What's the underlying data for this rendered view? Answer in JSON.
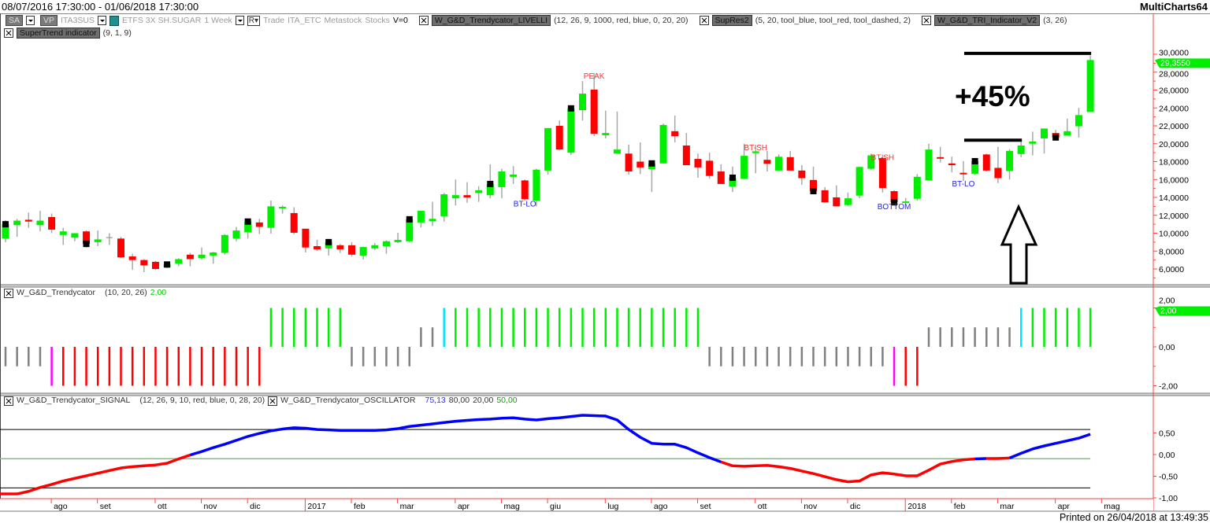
{
  "window": {
    "title": "08/07/2016 17:30:00 - 01/06/2018 17:30:00",
    "app_name": "MultiCharts64"
  },
  "legend": {
    "sa_label": "SA",
    "vp_label": "VP",
    "symbol": "ITA3SUS",
    "instrument": "ETFS 3X SH.SUGAR",
    "resolution": "1 Week",
    "r_button": "R",
    "trade": "Trade",
    "exchange": "ITA_ETC",
    "source": "Metastock",
    "category": "Stocks",
    "volume": "V=0",
    "studies": [
      {
        "name": "W_G&D_Trendycator_LIVELLI",
        "params": "(12, 26, 9, 1000, red, blue, 0, 20, 20)"
      },
      {
        "name": "SupRes2",
        "params": "(5, 20, tool_blue, tool_red, tool_dashed, 2)"
      },
      {
        "name": "W_G&D_TRI_Indicator_V2",
        "params": "(3, 26)"
      },
      {
        "name": "SuperTrend indicator",
        "params": "(9, 1, 9)"
      }
    ]
  },
  "colors": {
    "up": "#00ee00",
    "down": "#ff0000",
    "wick": "#a8a8a8",
    "axis": "#ff4040",
    "marker": "#000000",
    "neutral": "#808080",
    "cyan": "#00e5ff",
    "magenta": "#ff00ff",
    "osc_up": "#0000ff",
    "osc_down": "#ff0000",
    "level_mid": "#7fbf7f"
  },
  "annotations": {
    "gain_text": "+45%",
    "arrow": "up-arrow-outline"
  },
  "time_axis": {
    "ticks": [
      {
        "label": "ago",
        "bar": 4
      },
      {
        "label": "set",
        "bar": 8
      },
      {
        "label": "ott",
        "bar": 13
      },
      {
        "label": "nov",
        "bar": 17
      },
      {
        "label": "dic",
        "bar": 21
      },
      {
        "label": "2017",
        "bar": 26,
        "year": true
      },
      {
        "label": "feb",
        "bar": 30
      },
      {
        "label": "mar",
        "bar": 34
      },
      {
        "label": "apr",
        "bar": 39
      },
      {
        "label": "mag",
        "bar": 43
      },
      {
        "label": "giu",
        "bar": 47
      },
      {
        "label": "lug",
        "bar": 52
      },
      {
        "label": "ago",
        "bar": 56
      },
      {
        "label": "set",
        "bar": 60
      },
      {
        "label": "ott",
        "bar": 65
      },
      {
        "label": "nov",
        "bar": 69
      },
      {
        "label": "dic",
        "bar": 73
      },
      {
        "label": "2018",
        "bar": 78,
        "year": true
      },
      {
        "label": "feb",
        "bar": 82
      },
      {
        "label": "mar",
        "bar": 86
      },
      {
        "label": "apr",
        "bar": 91
      },
      {
        "label": "mag",
        "bar": 95
      }
    ]
  },
  "chart_data": [
    {
      "type": "candlestick",
      "title": "",
      "resolution": "1 Week",
      "ylim": [
        4.6,
        30.9
      ],
      "y_axis": {
        "position": "right",
        "tick_labels": [
          "30,0000",
          "28,0000",
          "26,0000",
          "24,0000",
          "22,0000",
          "20,0000",
          "18,0000",
          "16,0000",
          "14,0000",
          "12,0000",
          "10,0000",
          "8,0000",
          "6,0000"
        ]
      },
      "last_price_label": "29,3550",
      "ohlc_fields": [
        "open",
        "high",
        "low",
        "close"
      ],
      "candles": [
        [
          9.4,
          11.45,
          9.0,
          11.0
        ],
        [
          10.9,
          11.6,
          9.6,
          11.4
        ],
        [
          11.5,
          12.3,
          10.6,
          11.3
        ],
        [
          10.9,
          12.5,
          10.2,
          11.4
        ],
        [
          11.8,
          12.2,
          10.0,
          10.4
        ],
        [
          9.8,
          10.6,
          8.7,
          10.2
        ],
        [
          9.5,
          10.0,
          9.1,
          10.0
        ],
        [
          10.2,
          10.3,
          8.4,
          8.8
        ],
        [
          9.0,
          10.3,
          8.55,
          9.3
        ],
        [
          9.5,
          10.0,
          8.7,
          9.5
        ],
        [
          9.4,
          9.6,
          7.2,
          7.3
        ],
        [
          7.4,
          7.7,
          5.9,
          7.0
        ],
        [
          7.0,
          7.1,
          5.65,
          6.4
        ],
        [
          6.8,
          6.9,
          5.9,
          6.0
        ],
        [
          6.2,
          6.8,
          6.1,
          6.5
        ],
        [
          6.6,
          7.2,
          6.3,
          7.1
        ],
        [
          7.6,
          7.8,
          6.3,
          7.1
        ],
        [
          7.2,
          8.4,
          7.05,
          7.6
        ],
        [
          7.5,
          7.9,
          6.6,
          7.85
        ],
        [
          7.8,
          9.9,
          7.6,
          9.8
        ],
        [
          9.4,
          10.7,
          9.1,
          10.3
        ],
        [
          10.1,
          11.6,
          9.4,
          11.3
        ],
        [
          11.2,
          11.6,
          9.9,
          10.7
        ],
        [
          10.6,
          13.65,
          9.95,
          13.0
        ],
        [
          12.9,
          13.1,
          12.2,
          12.95
        ],
        [
          12.25,
          12.9,
          9.9,
          10.05
        ],
        [
          10.5,
          10.5,
          7.85,
          8.4
        ],
        [
          8.55,
          9.25,
          8.0,
          8.2
        ],
        [
          8.3,
          9.2,
          7.5,
          9.0
        ],
        [
          8.65,
          8.8,
          7.8,
          8.2
        ],
        [
          8.65,
          9.0,
          7.4,
          7.6
        ],
        [
          7.5,
          8.5,
          7.05,
          8.45
        ],
        [
          8.3,
          8.9,
          8.1,
          8.65
        ],
        [
          8.55,
          9.2,
          7.7,
          9.1
        ],
        [
          9.0,
          10.05,
          8.9,
          9.25
        ],
        [
          9.1,
          11.8,
          9.0,
          11.55
        ],
        [
          11.2,
          12.5,
          10.65,
          12.5
        ],
        [
          11.35,
          13.5,
          10.8,
          11.6
        ],
        [
          11.9,
          14.5,
          11.3,
          14.35
        ],
        [
          13.9,
          16.0,
          13.1,
          14.25
        ],
        [
          14.25,
          15.7,
          13.4,
          14.0
        ],
        [
          14.5,
          15.25,
          13.5,
          14.8
        ],
        [
          14.25,
          17.7,
          13.9,
          15.5
        ],
        [
          15.15,
          17.2,
          13.9,
          16.9
        ],
        [
          16.3,
          17.5,
          15.5,
          16.55
        ],
        [
          15.9,
          16.0,
          13.6,
          13.8
        ],
        [
          13.65,
          17.2,
          13.0,
          17.1
        ],
        [
          17.0,
          21.75,
          16.55,
          21.75
        ],
        [
          22.0,
          22.6,
          19.3,
          19.35
        ],
        [
          19.0,
          24.0,
          18.75,
          23.95
        ],
        [
          23.75,
          27.0,
          22.6,
          25.6
        ],
        [
          26.05,
          27.9,
          20.85,
          21.1
        ],
        [
          20.95,
          23.7,
          20.6,
          21.2
        ],
        [
          18.9,
          23.6,
          18.9,
          19.35
        ],
        [
          18.9,
          19.9,
          16.55,
          16.9
        ],
        [
          18.0,
          20.15,
          16.6,
          17.35
        ],
        [
          17.15,
          18.1,
          14.6,
          17.8
        ],
        [
          17.8,
          22.25,
          17.8,
          22.1
        ],
        [
          21.4,
          23.15,
          20.15,
          20.85
        ],
        [
          19.8,
          21.2,
          17.6,
          17.6
        ],
        [
          18.3,
          18.9,
          16.2,
          17.35
        ],
        [
          18.1,
          19.0,
          16.1,
          16.4
        ],
        [
          16.9,
          17.7,
          15.5,
          15.5
        ],
        [
          15.2,
          17.45,
          14.6,
          16.2
        ],
        [
          16.1,
          20.0,
          16.0,
          18.65
        ],
        [
          18.95,
          19.9,
          16.7,
          19.15
        ],
        [
          18.2,
          19.2,
          16.9,
          17.75
        ],
        [
          17.0,
          18.8,
          17.0,
          18.55
        ],
        [
          18.5,
          19.2,
          17.0,
          17.0
        ],
        [
          17.0,
          17.6,
          15.4,
          16.15
        ],
        [
          15.95,
          17.45,
          14.7,
          14.7
        ],
        [
          14.8,
          15.15,
          13.45,
          13.45
        ],
        [
          14.0,
          15.35,
          13.0,
          13.0
        ],
        [
          13.15,
          14.55,
          13.0,
          13.9
        ],
        [
          14.2,
          17.45,
          13.9,
          17.4
        ],
        [
          17.2,
          18.9,
          17.1,
          18.7
        ],
        [
          18.4,
          18.8,
          14.55,
          15.05
        ],
        [
          14.7,
          14.8,
          13.3,
          13.45
        ],
        [
          13.45,
          13.95,
          13.2,
          13.55
        ],
        [
          13.85,
          16.6,
          13.65,
          16.3
        ],
        [
          15.9,
          20.0,
          15.9,
          19.35
        ],
        [
          18.5,
          19.65,
          17.9,
          18.4
        ],
        [
          17.8,
          18.55,
          16.8,
          17.6
        ],
        [
          16.75,
          18.05,
          15.85,
          16.65
        ],
        [
          16.65,
          18.3,
          16.5,
          18.05
        ],
        [
          18.8,
          18.9,
          16.9,
          17.0
        ],
        [
          17.3,
          19.65,
          15.6,
          16.15
        ],
        [
          16.95,
          19.4,
          16.0,
          19.2
        ],
        [
          18.85,
          20.25,
          18.5,
          19.8
        ],
        [
          20.0,
          21.35,
          18.7,
          20.25
        ],
        [
          20.6,
          21.7,
          18.9,
          21.7
        ],
        [
          21.2,
          21.55,
          20.5,
          20.7
        ],
        [
          20.9,
          22.8,
          20.9,
          21.4
        ],
        [
          21.95,
          24.0,
          20.7,
          23.2
        ],
        [
          23.55,
          29.85,
          23.55,
          29.355
        ]
      ],
      "supertrend_markers": [
        0,
        7,
        14,
        21,
        28,
        35,
        42,
        49,
        56,
        63,
        70,
        77,
        84,
        91
      ],
      "signal_labels": [
        {
          "text": "BT-LO",
          "bar": 45,
          "side": "below",
          "color": "#2020ff"
        },
        {
          "text": "PEAK",
          "bar": 51,
          "side": "above",
          "color": "#ff3030"
        },
        {
          "text": "BT-SH",
          "bar": 65,
          "side": "above",
          "color": "#ff3030"
        },
        {
          "text": "BT-SH",
          "bar": 76,
          "side": "above",
          "color": "#ff3030"
        },
        {
          "text": "BOTTOM",
          "bar": 77,
          "side": "below",
          "color": "#2020ff"
        },
        {
          "text": "BT-LO",
          "bar": 83,
          "side": "below",
          "color": "#2020ff"
        }
      ],
      "gain_lines": [
        {
          "value": 30.1,
          "from_bar": 83,
          "to_bar": 94
        },
        {
          "value": 20.4,
          "from_bar": 83,
          "to_bar": 88
        }
      ]
    },
    {
      "type": "bar",
      "study": "W_G&D_Trendycator",
      "params": "(10, 20, 26)",
      "current_value_label": "2,00",
      "ylim": [
        -2.2,
        2.4
      ],
      "y_axis": {
        "position": "right",
        "tick_labels": [
          "2,00",
          "0,00",
          "-2,00"
        ]
      },
      "values": [
        -1,
        -1,
        -1,
        -1,
        -2,
        -2,
        -2,
        -2,
        -2,
        -2,
        -2,
        -2,
        -2,
        -2,
        -2,
        -2,
        -2,
        -2,
        -2,
        -2,
        -2,
        -2,
        -2,
        2,
        2,
        2,
        2,
        2,
        2,
        2,
        -1,
        -1,
        -1,
        -1,
        -1,
        -1,
        1,
        1,
        2,
        2,
        2,
        2,
        2,
        2,
        2,
        2,
        2,
        2,
        2,
        2,
        2,
        2,
        2,
        2,
        2,
        2,
        2,
        2,
        2,
        2,
        2,
        -1,
        -1,
        -1,
        -1,
        -1,
        -1,
        -1,
        -1,
        -1,
        -1,
        -1,
        -1,
        -1,
        -1,
        -1,
        -1,
        -2,
        -2,
        -2,
        1,
        1,
        1,
        1,
        1,
        1,
        1,
        1,
        2,
        2,
        2,
        2,
        2,
        2,
        2
      ],
      "colors": [
        "n",
        "n",
        "n",
        "n",
        "m",
        "r",
        "r",
        "r",
        "r",
        "r",
        "r",
        "r",
        "r",
        "r",
        "r",
        "r",
        "r",
        "r",
        "r",
        "r",
        "r",
        "r",
        "r",
        "g",
        "g",
        "g",
        "g",
        "g",
        "g",
        "g",
        "n",
        "n",
        "n",
        "n",
        "n",
        "n",
        "n",
        "n",
        "c",
        "g",
        "g",
        "g",
        "g",
        "g",
        "g",
        "g",
        "g",
        "g",
        "g",
        "g",
        "g",
        "g",
        "g",
        "g",
        "g",
        "g",
        "g",
        "g",
        "g",
        "g",
        "g",
        "n",
        "n",
        "n",
        "n",
        "n",
        "n",
        "n",
        "n",
        "n",
        "n",
        "n",
        "n",
        "n",
        "n",
        "n",
        "n",
        "m",
        "r",
        "r",
        "n",
        "n",
        "n",
        "n",
        "n",
        "n",
        "n",
        "n",
        "c",
        "g",
        "g",
        "g",
        "g",
        "g",
        "g"
      ]
    },
    {
      "type": "line",
      "studies": [
        {
          "name": "W_G&D_Trendycator_SIGNAL",
          "params": "(12, 26, 9, 10, red, blue, 0, 28, 20)"
        },
        {
          "name": "W_G&D_Trendycator_OSCILLATOR",
          "values_label": [
            "75,13",
            "80,00",
            "20,00",
            "50,00"
          ]
        }
      ],
      "ylim": [
        -1.02,
        0.95
      ],
      "y_axis": {
        "position": "right",
        "tick_labels": [
          "0,50",
          "0,00",
          "-0,50",
          "-1,00"
        ]
      },
      "levels": [
        80,
        20,
        50
      ],
      "values": [
        -0.91,
        -0.91,
        -0.85,
        -0.76,
        -0.69,
        -0.61,
        -0.55,
        -0.49,
        -0.43,
        -0.37,
        -0.31,
        -0.28,
        -0.26,
        -0.24,
        -0.2,
        -0.1,
        -0.01,
        0.07,
        0.16,
        0.24,
        0.33,
        0.42,
        0.49,
        0.55,
        0.59,
        0.62,
        0.61,
        0.58,
        0.57,
        0.56,
        0.56,
        0.56,
        0.56,
        0.57,
        0.6,
        0.65,
        0.68,
        0.71,
        0.74,
        0.77,
        0.79,
        0.81,
        0.82,
        0.84,
        0.85,
        0.82,
        0.8,
        0.83,
        0.85,
        0.88,
        0.91,
        0.9,
        0.89,
        0.8,
        0.58,
        0.4,
        0.26,
        0.24,
        0.24,
        0.16,
        0.04,
        -0.07,
        -0.17,
        -0.26,
        -0.27,
        -0.26,
        -0.25,
        -0.28,
        -0.32,
        -0.38,
        -0.44,
        -0.51,
        -0.58,
        -0.63,
        -0.61,
        -0.47,
        -0.42,
        -0.45,
        -0.49,
        -0.49,
        -0.36,
        -0.22,
        -0.16,
        -0.12,
        -0.1,
        -0.09,
        -0.09,
        -0.08,
        0.03,
        0.13,
        0.2,
        0.26,
        0.32,
        0.38,
        0.47
      ],
      "color_segments": [
        {
          "from": 0,
          "to": 16,
          "color": "red"
        },
        {
          "from": 16,
          "to": 62,
          "color": "blue"
        },
        {
          "from": 62,
          "to": 84,
          "color": "red"
        },
        {
          "from": 84,
          "to": 85,
          "color": "blue"
        },
        {
          "from": 85,
          "to": 87,
          "color": "red"
        },
        {
          "from": 87,
          "to": 94,
          "color": "blue"
        }
      ]
    }
  ],
  "footer": {
    "printed": "Printed on 26/04/2018 at 13:49:35"
  }
}
